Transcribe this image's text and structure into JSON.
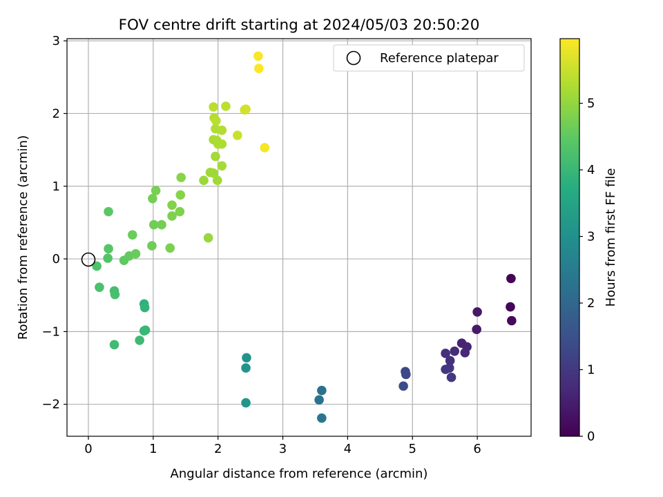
{
  "chart_data": {
    "type": "scatter",
    "title": "FOV centre drift starting at 2024/05/03 20:50:20",
    "xlabel": "Angular distance from reference (arcmin)",
    "ylabel": "Rotation from reference (arcmin)",
    "xlim": [
      -0.33,
      6.83
    ],
    "ylim": [
      -2.44,
      3.03
    ],
    "xticks": [
      0,
      1,
      2,
      3,
      4,
      5,
      6
    ],
    "yticks": [
      -2,
      -1,
      0,
      1,
      2,
      3
    ],
    "xtick_labels": [
      "0",
      "1",
      "2",
      "3",
      "4",
      "5",
      "6"
    ],
    "ytick_labels": [
      "−2",
      "−1",
      "0",
      "1",
      "2",
      "3"
    ],
    "grid": true,
    "legend": {
      "position": "top-right",
      "entries": [
        {
          "label": "Reference platepar",
          "marker": "open-circle"
        }
      ]
    },
    "reference": {
      "x": 0,
      "y": 0
    },
    "colorbar": {
      "label": "Hours from first FF file",
      "range": [
        0,
        5.97
      ],
      "ticks": [
        0,
        1,
        2,
        3,
        4,
        5
      ],
      "tick_labels": [
        "0",
        "1",
        "2",
        "3",
        "4",
        "5"
      ],
      "colormap": "viridis"
    },
    "points": [
      {
        "x": 6.52,
        "y": -0.27,
        "c": 0.05
      },
      {
        "x": 6.51,
        "y": -0.66,
        "c": 0.1
      },
      {
        "x": 6.53,
        "y": -0.85,
        "c": 0.15
      },
      {
        "x": 6.0,
        "y": -0.73,
        "c": 0.4
      },
      {
        "x": 5.99,
        "y": -0.97,
        "c": 0.45
      },
      {
        "x": 5.76,
        "y": -1.16,
        "c": 0.6
      },
      {
        "x": 5.84,
        "y": -1.21,
        "c": 0.65
      },
      {
        "x": 5.81,
        "y": -1.29,
        "c": 0.7
      },
      {
        "x": 5.65,
        "y": -1.27,
        "c": 0.75
      },
      {
        "x": 5.51,
        "y": -1.3,
        "c": 0.8
      },
      {
        "x": 5.58,
        "y": -1.4,
        "c": 0.85
      },
      {
        "x": 5.57,
        "y": -1.5,
        "c": 0.9
      },
      {
        "x": 5.51,
        "y": -1.52,
        "c": 0.95
      },
      {
        "x": 5.6,
        "y": -1.63,
        "c": 1.0
      },
      {
        "x": 4.89,
        "y": -1.55,
        "c": 1.3
      },
      {
        "x": 4.9,
        "y": -1.59,
        "c": 1.35
      },
      {
        "x": 4.86,
        "y": -1.75,
        "c": 1.4
      },
      {
        "x": 3.6,
        "y": -1.81,
        "c": 2.25
      },
      {
        "x": 3.56,
        "y": -1.94,
        "c": 2.3
      },
      {
        "x": 3.6,
        "y": -2.19,
        "c": 2.35
      },
      {
        "x": 2.44,
        "y": -1.36,
        "c": 3.05
      },
      {
        "x": 2.43,
        "y": -1.5,
        "c": 3.1
      },
      {
        "x": 2.43,
        "y": -1.98,
        "c": 3.15
      },
      {
        "x": 0.86,
        "y": -0.62,
        "c": 3.85
      },
      {
        "x": 0.87,
        "y": -0.67,
        "c": 3.9
      },
      {
        "x": 0.88,
        "y": -0.98,
        "c": 3.95
      },
      {
        "x": 0.86,
        "y": -0.99,
        "c": 4.0
      },
      {
        "x": 0.79,
        "y": -1.12,
        "c": 4.05
      },
      {
        "x": 0.4,
        "y": -1.18,
        "c": 4.1
      },
      {
        "x": 0.4,
        "y": -0.44,
        "c": 4.15
      },
      {
        "x": 0.41,
        "y": -0.49,
        "c": 4.2
      },
      {
        "x": 0.17,
        "y": -0.39,
        "c": 4.25
      },
      {
        "x": 0.13,
        "y": -0.1,
        "c": 4.3
      },
      {
        "x": 0.3,
        "y": 0.01,
        "c": 4.35
      },
      {
        "x": 0.31,
        "y": 0.14,
        "c": 4.4
      },
      {
        "x": 0.31,
        "y": 0.65,
        "c": 4.45
      },
      {
        "x": 0.55,
        "y": -0.02,
        "c": 4.5
      },
      {
        "x": 0.63,
        "y": 0.04,
        "c": 4.55
      },
      {
        "x": 0.73,
        "y": 0.07,
        "c": 4.6
      },
      {
        "x": 0.68,
        "y": 0.33,
        "c": 4.62
      },
      {
        "x": 0.98,
        "y": 0.18,
        "c": 4.65
      },
      {
        "x": 1.01,
        "y": 0.47,
        "c": 4.68
      },
      {
        "x": 1.13,
        "y": 0.47,
        "c": 4.7
      },
      {
        "x": 0.99,
        "y": 0.83,
        "c": 4.72
      },
      {
        "x": 1.04,
        "y": 0.94,
        "c": 4.75
      },
      {
        "x": 1.26,
        "y": 0.15,
        "c": 4.78
      },
      {
        "x": 1.29,
        "y": 0.59,
        "c": 4.8
      },
      {
        "x": 1.41,
        "y": 0.65,
        "c": 4.82
      },
      {
        "x": 1.29,
        "y": 0.74,
        "c": 4.85
      },
      {
        "x": 1.42,
        "y": 0.88,
        "c": 4.88
      },
      {
        "x": 1.43,
        "y": 1.12,
        "c": 4.9
      },
      {
        "x": 1.85,
        "y": 0.29,
        "c": 5.05
      },
      {
        "x": 1.78,
        "y": 1.08,
        "c": 5.08
      },
      {
        "x": 1.88,
        "y": 1.19,
        "c": 5.1
      },
      {
        "x": 1.93,
        "y": 1.18,
        "c": 5.12
      },
      {
        "x": 1.99,
        "y": 1.08,
        "c": 5.14
      },
      {
        "x": 1.96,
        "y": 1.41,
        "c": 5.16
      },
      {
        "x": 2.06,
        "y": 1.28,
        "c": 5.18
      },
      {
        "x": 1.93,
        "y": 1.64,
        "c": 5.2
      },
      {
        "x": 1.98,
        "y": 1.63,
        "c": 5.22
      },
      {
        "x": 2.0,
        "y": 1.58,
        "c": 5.24
      },
      {
        "x": 2.06,
        "y": 1.58,
        "c": 5.26
      },
      {
        "x": 1.96,
        "y": 1.79,
        "c": 5.28
      },
      {
        "x": 2.06,
        "y": 1.77,
        "c": 5.3
      },
      {
        "x": 1.94,
        "y": 1.94,
        "c": 5.32
      },
      {
        "x": 1.97,
        "y": 1.9,
        "c": 5.34
      },
      {
        "x": 1.93,
        "y": 2.09,
        "c": 5.36
      },
      {
        "x": 2.12,
        "y": 2.1,
        "c": 5.38
      },
      {
        "x": 2.3,
        "y": 1.7,
        "c": 5.5
      },
      {
        "x": 2.41,
        "y": 2.05,
        "c": 5.55
      },
      {
        "x": 2.43,
        "y": 2.06,
        "c": 5.58
      },
      {
        "x": 2.72,
        "y": 1.53,
        "c": 5.9
      },
      {
        "x": 2.62,
        "y": 2.79,
        "c": 5.93
      },
      {
        "x": 2.63,
        "y": 2.62,
        "c": 5.95
      }
    ]
  }
}
